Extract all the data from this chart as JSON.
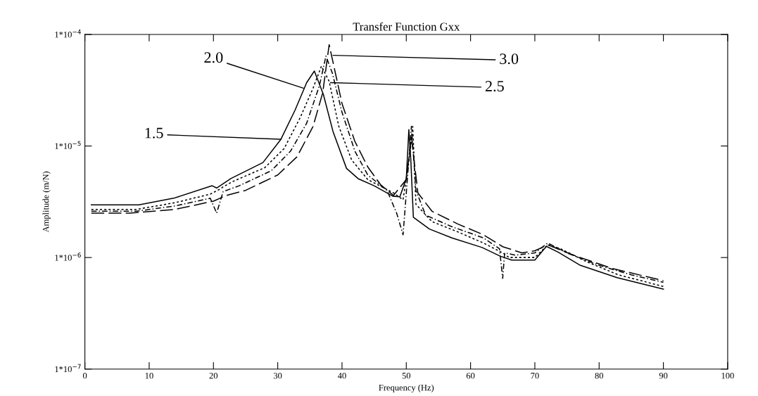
{
  "chart_data": {
    "type": "line",
    "title": "Transfer Function Gxx",
    "xlabel": "Frequency (Hz)",
    "ylabel": "Amplitude (m/N)",
    "log": "y",
    "grid": false,
    "legend": false,
    "marker": "none",
    "xlim": [
      0,
      100
    ],
    "xticks": [
      0,
      10,
      20,
      30,
      40,
      50,
      60,
      70,
      80,
      90,
      100
    ],
    "ylim": [
      1e-07,
      0.0001
    ],
    "yticks": [
      {
        "value": 1e-07,
        "label": "1*10$^{−7}$"
      },
      {
        "value": 1e-06,
        "label": "1*10$^{−6}$"
      },
      {
        "value": 1e-05,
        "label": "1*10$^{−5}$"
      },
      {
        "value": 0.0001,
        "label": "1*10$^{−4}$"
      }
    ],
    "series": [
      {
        "color": "#000000",
        "line_style": "solid",
        "x": [
          1,
          8.4,
          13.8,
          19.8,
          20.5,
          22.7,
          27.7,
          30.5,
          32.7,
          34.5,
          35.7,
          37.1,
          38.6,
          40.7,
          42.5,
          45,
          47.9,
          49,
          50,
          50.4,
          50.7,
          51.1,
          53.6,
          57.1,
          61.8,
          64.6,
          66.4,
          70,
          71.8,
          73.6,
          77.1,
          82.8,
          90
        ],
        "values": [
          2.97e-06,
          2.97e-06,
          3.4e-06,
          4.4e-06,
          4.2e-06,
          5.1e-06,
          7.1e-06,
          1.15e-05,
          2.1e-05,
          3.7e-05,
          4.7e-05,
          2.9e-05,
          1.35e-05,
          6.3e-06,
          5.1e-06,
          4.4e-06,
          3.55e-06,
          3.5e-06,
          5.1e-06,
          1.4e-05,
          7.6e-06,
          2.3e-06,
          1.8e-06,
          1.5e-06,
          1.23e-06,
          1.03e-06,
          9.5e-07,
          9.5e-07,
          1.26e-06,
          1.12e-06,
          8.5e-07,
          6.6e-07,
          5.2e-07
        ]
      },
      {
        "color": "#000000",
        "line_style": "dotted",
        "x": [
          1,
          8,
          14,
          19.5,
          21,
          21.5,
          23,
          28,
          31,
          33.5,
          35.5,
          36.8,
          38,
          39.5,
          41.5,
          44,
          48,
          49.5,
          50.5,
          51,
          51.5,
          54,
          58,
          62,
          65,
          66,
          70,
          72,
          74,
          78,
          83,
          90
        ],
        "values": [
          2.7e-06,
          2.7e-06,
          3.1e-06,
          3.7e-06,
          4.1e-06,
          4.3e-06,
          4.8e-06,
          6.4e-06,
          9.5e-06,
          1.8e-05,
          3.3e-05,
          5.2e-05,
          3.8e-05,
          1.5e-05,
          7.5e-06,
          5e-06,
          3.8e-06,
          3.3e-06,
          8e-06,
          1.5e-05,
          3e-06,
          2.1e-06,
          1.7e-06,
          1.35e-06,
          1.1e-06,
          1e-06,
          1e-06,
          1.3e-06,
          1.2e-06,
          9.2e-07,
          7e-07,
          5.5e-07
        ]
      },
      {
        "color": "#000000",
        "line_style": "dashed",
        "x": [
          1,
          8,
          14,
          19.5,
          20.5,
          21.5,
          24,
          29,
          32,
          34.5,
          36.5,
          37.5,
          38.5,
          40,
          42,
          44,
          47,
          48.5,
          49.5,
          50.8,
          51.5,
          53,
          57,
          62,
          64.5,
          65,
          65.3,
          67,
          70,
          72,
          75,
          80,
          85,
          90
        ],
        "values": [
          2.6e-06,
          2.6e-06,
          2.9e-06,
          3.4e-06,
          2.5e-06,
          3.9e-06,
          4.4e-06,
          6e-06,
          9e-06,
          1.6e-05,
          3.5e-05,
          6.4e-05,
          4.5e-05,
          2e-05,
          9e-06,
          5.5e-06,
          4e-06,
          2.5e-06,
          1.6e-06,
          1.5e-05,
          4e-06,
          2.4e-06,
          1.9e-06,
          1.5e-06,
          1.2e-06,
          6.5e-07,
          1.1e-06,
          1.05e-06,
          1.1e-06,
          1.35e-06,
          1.1e-06,
          8.5e-07,
          7e-07,
          6e-07
        ]
      },
      {
        "color": "#000000",
        "line_style": "dashed",
        "x": [
          1,
          7,
          14,
          20,
          22,
          25,
          30,
          33,
          35.5,
          37,
          38,
          38.8,
          40,
          42,
          44,
          46,
          48,
          50,
          50.8,
          51.8,
          54,
          58,
          62,
          65,
          68,
          70,
          72,
          76,
          82,
          90
        ],
        "values": [
          2.5e-06,
          2.5e-06,
          2.7e-06,
          3.2e-06,
          3.6e-06,
          4e-06,
          5.5e-06,
          8e-06,
          1.5e-05,
          3e-05,
          8.1e-05,
          5e-05,
          2.4e-05,
          1.1e-05,
          6.5e-06,
          4.5e-06,
          3.6e-06,
          5e-06,
          1.2e-05,
          3.8e-06,
          2.6e-06,
          2e-06,
          1.6e-06,
          1.25e-06,
          1.1e-06,
          1.15e-06,
          1.3e-06,
          1.05e-06,
          8e-07,
          6.2e-07
        ]
      }
    ],
    "annotations": [
      {
        "text": "1.5",
        "x": 30.5,
        "y": 1.15e-05
      },
      {
        "text": "2.0",
        "x": 34,
        "y": 3.3e-05
      },
      {
        "text": "3.0",
        "x": 38.6,
        "y": 6.5e-05
      },
      {
        "text": "2.5",
        "x": 38.2,
        "y": 3.7e-05
      }
    ]
  }
}
